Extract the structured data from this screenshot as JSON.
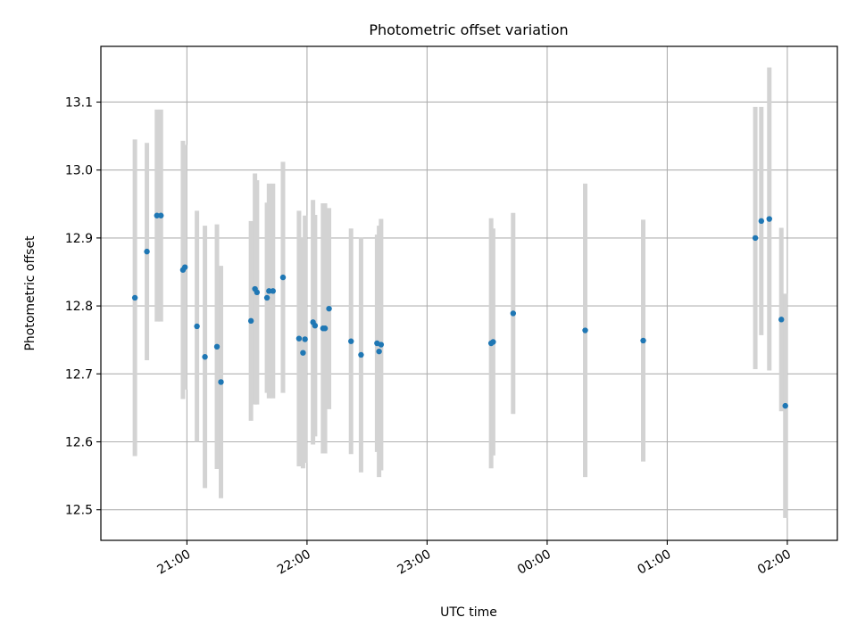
{
  "colors": {
    "point": "#1f77b4",
    "errorbar": "#d3d3d3",
    "grid": "#b0b0b0",
    "axis": "#000000",
    "background": "#ffffff"
  },
  "chart_data": {
    "type": "scatter",
    "title": "Photometric offset variation",
    "xlabel": "UTC time",
    "ylabel": "Photometric offset",
    "xlim": [
      "20:17",
      "02:25"
    ],
    "ylim": [
      12.455,
      13.182
    ],
    "grid": true,
    "x_ticks": [
      "21:00",
      "22:00",
      "23:00",
      "00:00",
      "01:00",
      "02:00"
    ],
    "y_ticks": [
      12.5,
      12.6,
      12.7,
      12.8,
      12.9,
      13.0,
      13.1
    ],
    "y_tick_labels": [
      "12.5",
      "12.6",
      "12.7",
      "12.8",
      "12.9",
      "13.0",
      "13.1"
    ],
    "series": [
      {
        "points": [
          {
            "t": "20:34",
            "y": 12.812,
            "err": 0.233
          },
          {
            "t": "20:40",
            "y": 12.88,
            "err": 0.16
          },
          {
            "t": "20:45",
            "y": 12.933,
            "err": 0.156
          },
          {
            "t": "20:47",
            "y": 12.933,
            "err": 0.156
          },
          {
            "t": "20:58",
            "y": 12.853,
            "err": 0.19
          },
          {
            "t": "20:59",
            "y": 12.857,
            "err": 0.18
          },
          {
            "t": "21:05",
            "y": 12.77,
            "err": 0.17
          },
          {
            "t": "21:09",
            "y": 12.725,
            "err": 0.193
          },
          {
            "t": "21:15",
            "y": 12.74,
            "err": 0.18
          },
          {
            "t": "21:17",
            "y": 12.688,
            "err": 0.171
          },
          {
            "t": "21:32",
            "y": 12.778,
            "err": 0.147
          },
          {
            "t": "21:34",
            "y": 12.825,
            "err": 0.17
          },
          {
            "t": "21:35",
            "y": 12.82,
            "err": 0.165
          },
          {
            "t": "21:40",
            "y": 12.812,
            "err": 0.14
          },
          {
            "t": "21:41",
            "y": 12.822,
            "err": 0.158
          },
          {
            "t": "21:43",
            "y": 12.822,
            "err": 0.158
          },
          {
            "t": "21:48",
            "y": 12.842,
            "err": 0.17
          },
          {
            "t": "21:56",
            "y": 12.752,
            "err": 0.188
          },
          {
            "t": "21:58",
            "y": 12.731,
            "err": 0.17
          },
          {
            "t": "21:59",
            "y": 12.751,
            "err": 0.182
          },
          {
            "t": "22:03",
            "y": 12.776,
            "err": 0.18
          },
          {
            "t": "22:04",
            "y": 12.771,
            "err": 0.163
          },
          {
            "t": "22:08",
            "y": 12.767,
            "err": 0.184
          },
          {
            "t": "22:09",
            "y": 12.767,
            "err": 0.184
          },
          {
            "t": "22:11",
            "y": 12.796,
            "err": 0.148
          },
          {
            "t": "22:22",
            "y": 12.748,
            "err": 0.166
          },
          {
            "t": "22:27",
            "y": 12.728,
            "err": 0.173
          },
          {
            "t": "22:35",
            "y": 12.745,
            "err": 0.16
          },
          {
            "t": "22:36",
            "y": 12.733,
            "err": 0.185
          },
          {
            "t": "22:37",
            "y": 12.743,
            "err": 0.185
          },
          {
            "t": "23:32",
            "y": 12.745,
            "err": 0.184
          },
          {
            "t": "23:33",
            "y": 12.747,
            "err": 0.167
          },
          {
            "t": "23:43",
            "y": 12.789,
            "err": 0.148
          },
          {
            "t": "00:19",
            "y": 12.764,
            "err": 0.216
          },
          {
            "t": "00:48",
            "y": 12.749,
            "err": 0.178
          },
          {
            "t": "01:44",
            "y": 12.9,
            "err": 0.193
          },
          {
            "t": "01:47",
            "y": 12.925,
            "err": 0.168
          },
          {
            "t": "01:51",
            "y": 12.928,
            "err": 0.223
          },
          {
            "t": "01:57",
            "y": 12.78,
            "err": 0.135
          },
          {
            "t": "01:59",
            "y": 12.653,
            "err": 0.165
          }
        ]
      }
    ]
  }
}
